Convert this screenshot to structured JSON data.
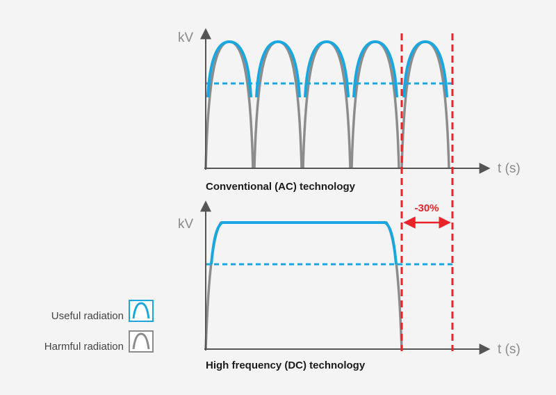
{
  "colors": {
    "useful": "#1aa7e0",
    "harmful": "#8c8c8c",
    "axis": "#555555",
    "marker": "#e8232a"
  },
  "top_chart": {
    "y_axis_label": "kV",
    "x_axis_label": "t (s)",
    "caption": "Conventional (AC) technology"
  },
  "bottom_chart": {
    "y_axis_label": "kV",
    "x_axis_label": "t (s)",
    "caption": "High frequency (DC) technology",
    "reduction_label": "-30%"
  },
  "legend": {
    "useful_label": "Useful radiation",
    "useful_icon": "useful-radiation-icon",
    "harmful_label": "Harmful radiation",
    "harmful_icon": "harmful-radiation-icon"
  }
}
